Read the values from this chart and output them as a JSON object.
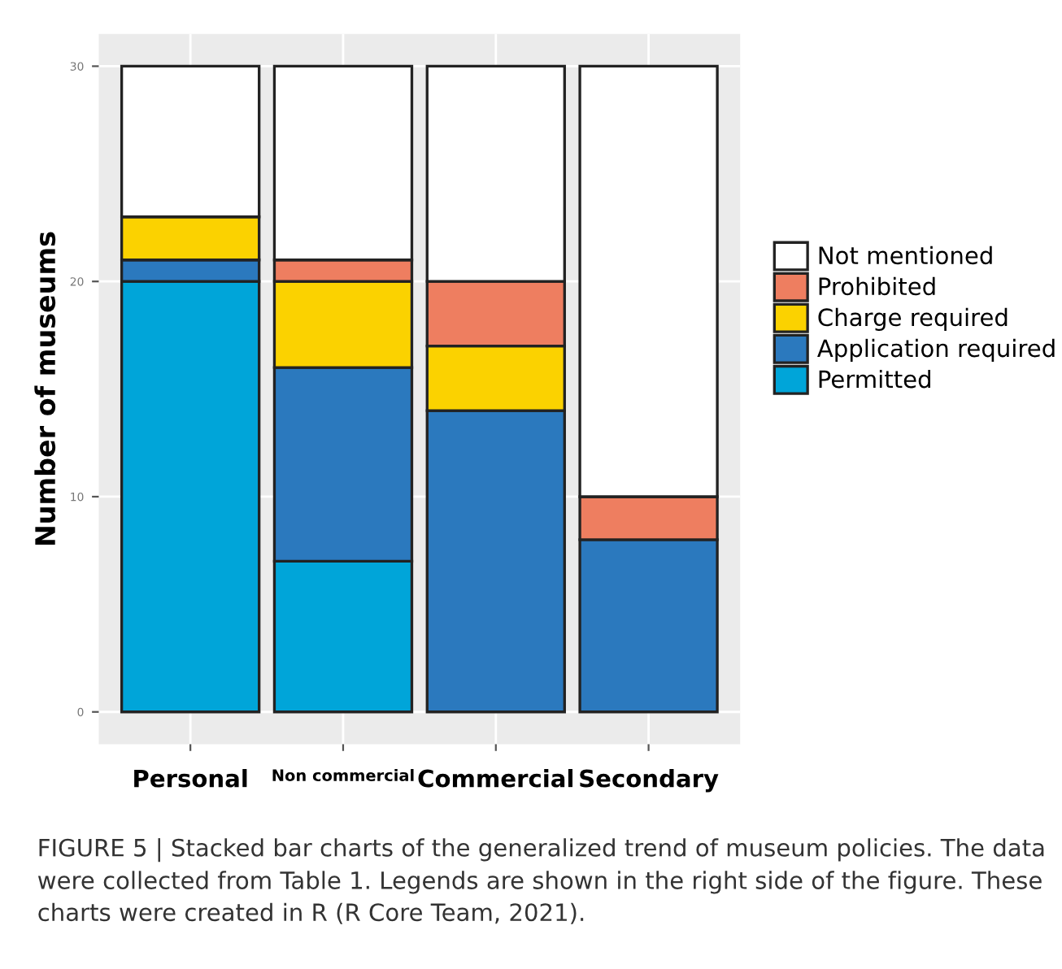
{
  "chart_data": {
    "type": "bar",
    "stacked": true,
    "ylabel": "Number of museums",
    "categories": [
      "Personal",
      "Non commercial",
      "Commercial",
      "Secondary"
    ],
    "series": [
      {
        "name": "Permitted",
        "color": "#00a5d9",
        "values": [
          20,
          7,
          0,
          0
        ]
      },
      {
        "name": "Application required",
        "color": "#2b79be",
        "values": [
          1,
          9,
          14,
          8
        ]
      },
      {
        "name": "Charge required",
        "color": "#fbd200",
        "values": [
          2,
          4,
          3,
          0
        ]
      },
      {
        "name": "Prohibited",
        "color": "#ee7e60",
        "values": [
          0,
          1,
          3,
          2
        ]
      },
      {
        "name": "Not mentioned",
        "color": "#ffffff",
        "values": [
          7,
          9,
          10,
          20
        ]
      }
    ],
    "ylim": [
      -1.5,
      31.5
    ],
    "yticks": [
      0,
      10,
      20,
      30
    ],
    "grid": true,
    "legend": "right",
    "annotations": [
      "FIGURE 5 | Stacked bar charts of the generalized trend of museum policies. The data were collected from Table 1. Legends are shown in the right side of the figure. These charts were created in R (R Core Team, 2021)."
    ]
  }
}
